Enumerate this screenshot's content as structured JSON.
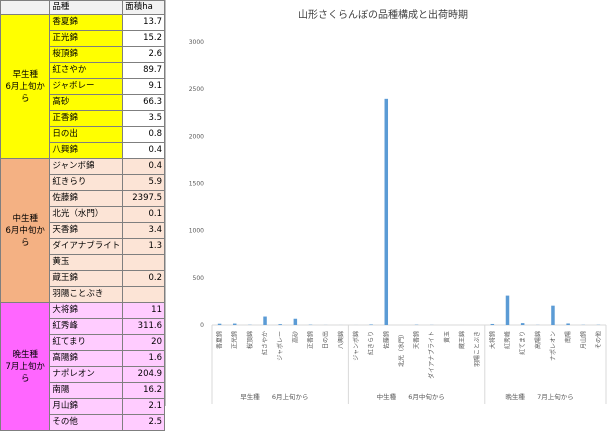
{
  "table": {
    "headers": [
      "品種",
      "面積ha"
    ],
    "groups": [
      {
        "label": "早生種\n6月上旬から",
        "color": "#ffff00",
        "varietyColor": "#ffff00",
        "rows": [
          {
            "name": "香夏錦",
            "value": "13.7"
          },
          {
            "name": "正光錦",
            "value": "15.2"
          },
          {
            "name": "桜頂錦",
            "value": "2.6"
          },
          {
            "name": "紅さやか",
            "value": "89.7"
          },
          {
            "name": "ジャボレー",
            "value": "9.1"
          },
          {
            "name": "高砂",
            "value": "66.3"
          },
          {
            "name": "正香錦",
            "value": "3.5"
          },
          {
            "name": "日の出",
            "value": "0.8"
          },
          {
            "name": "八興錦",
            "value": "0.4"
          }
        ]
      },
      {
        "label": "中生種\n6月中旬から",
        "color": "#f4b183",
        "varietyColor": "#fce4d6",
        "rows": [
          {
            "name": "ジャンボ錦",
            "value": "0.4"
          },
          {
            "name": "紅きらり",
            "value": "5.9"
          },
          {
            "name": "佐藤錦",
            "value": "2397.5"
          },
          {
            "name": "北光（水門）",
            "value": "0.1"
          },
          {
            "name": "天香錦",
            "value": "3.4"
          },
          {
            "name": "ダイアナブライト",
            "value": "1.3"
          },
          {
            "name": "黄玉",
            "value": ""
          },
          {
            "name": "蔵王錦",
            "value": "0.2"
          },
          {
            "name": "羽陽ことぶき",
            "value": ""
          }
        ]
      },
      {
        "label": "晩生種\n7月上旬から",
        "color": "#ff66ff",
        "varietyColor": "#ffccff",
        "rows": [
          {
            "name": "大将錦",
            "value": "11"
          },
          {
            "name": "紅秀峰",
            "value": "311.6"
          },
          {
            "name": "紅てまり",
            "value": "20"
          },
          {
            "name": "高陽錦",
            "value": "1.6"
          },
          {
            "name": "ナポレオン",
            "value": "204.9"
          },
          {
            "name": "南陽",
            "value": "16.2"
          },
          {
            "name": "月山錦",
            "value": "2.1"
          },
          {
            "name": "その他",
            "value": "2.5"
          }
        ]
      }
    ]
  },
  "chart_data": {
    "type": "bar",
    "title": "山形さくらんぼの品種構成と出荷時期",
    "ylim": [
      0,
      3000
    ],
    "yticks": [
      0,
      500,
      1000,
      1500,
      2000,
      2500,
      3000
    ],
    "grid": false,
    "barColor": "#5b9bd5",
    "categories": [
      "香夏錦",
      "正光錦",
      "桜頂錦",
      "紅さやか",
      "ジャボレー",
      "高砂",
      "正香錦",
      "日の出",
      "八興錦",
      "ジャンボ錦",
      "紅きらり",
      "佐藤錦",
      "北光（水門）",
      "天香錦",
      "ダイアナブライト",
      "黄玉",
      "蔵王錦",
      "羽陽ことぶき",
      "大将錦",
      "紅秀峰",
      "紅てまり",
      "高陽錦",
      "ナポレオン",
      "南陽",
      "月山錦",
      "その他"
    ],
    "values": [
      13.7,
      15.2,
      2.6,
      89.7,
      9.1,
      66.3,
      3.5,
      0.8,
      0.4,
      0.4,
      5.9,
      2397.5,
      0.1,
      3.4,
      1.3,
      0,
      0.2,
      0,
      11,
      311.6,
      20,
      1.6,
      204.9,
      16.2,
      2.1,
      2.5
    ],
    "groups": [
      {
        "name": "早生種",
        "period": "6月上旬から",
        "count": 9
      },
      {
        "name": "中生種",
        "period": "6月中旬から",
        "count": 9
      },
      {
        "name": "晩生種",
        "period": "7月上旬から",
        "count": 8
      }
    ]
  }
}
